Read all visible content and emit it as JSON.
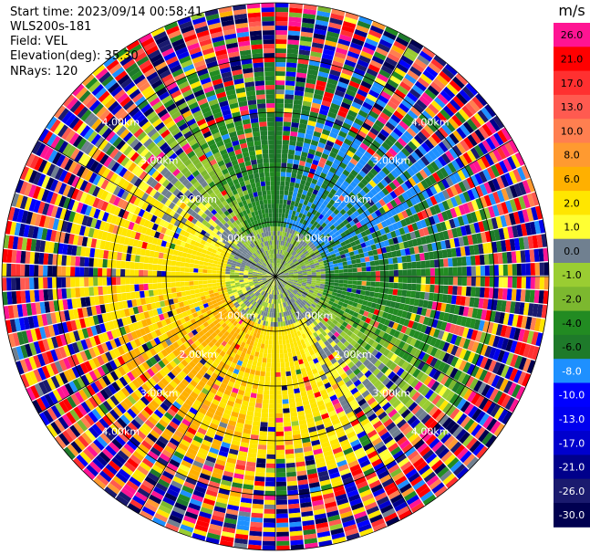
{
  "info": {
    "start_time": "Start time: 2023/09/14 00:58:41",
    "instrument": "WLS200s-181",
    "field": "Field: VEL",
    "elevation": "Elevation(deg): 35.30",
    "nrays": "NRays: 120"
  },
  "colorbar": {
    "unit": "m/s",
    "bins": [
      {
        "label": "26.0",
        "color": "#ff1493"
      },
      {
        "label": "21.0",
        "color": "#ff0000"
      },
      {
        "label": "17.0",
        "color": "#ff3030"
      },
      {
        "label": "13.0",
        "color": "#ff5a50"
      },
      {
        "label": "10.0",
        "color": "#ff7f50"
      },
      {
        "label": "8.0",
        "color": "#ff9a30"
      },
      {
        "label": "6.0",
        "color": "#ffb000"
      },
      {
        "label": "2.0",
        "color": "#ffe600"
      },
      {
        "label": "1.0",
        "color": "#ffff33"
      },
      {
        "label": "0.0",
        "color": "#708090"
      },
      {
        "label": "-1.0",
        "color": "#9acd32"
      },
      {
        "label": "-2.0",
        "color": "#7cb82f"
      },
      {
        "label": "-4.0",
        "color": "#228b22"
      },
      {
        "label": "-6.0",
        "color": "#1e7a2a"
      },
      {
        "label": "-8.0",
        "color": "#1e90ff"
      },
      {
        "label": "-10.0",
        "color": "#0000ff"
      },
      {
        "label": "-13.0",
        "color": "#0000ee"
      },
      {
        "label": "-17.0",
        "color": "#0000cd"
      },
      {
        "label": "-21.0",
        "color": "#00008b"
      },
      {
        "label": "-26.0",
        "color": "#1a1a6e"
      },
      {
        "label": "-30.0",
        "color": "#000050"
      }
    ]
  },
  "chart_data": {
    "type": "ppi",
    "field": "VEL",
    "units": "m/s",
    "nrays": 120,
    "elevation_deg": 35.3,
    "range_ring_labels_km": [
      1.0,
      2.0,
      3.0,
      4.0
    ],
    "range_ring_label_text": [
      "1.00km",
      "2.00km",
      "3.00km",
      "4.00km"
    ],
    "max_range_km": 5.0,
    "velocity_pattern": {
      "description_sectors": [
        {
          "azimuth_center_deg": 45,
          "dominant": "negative",
          "value_approx": -6.0
        },
        {
          "azimuth_center_deg": 225,
          "dominant": "positive",
          "value_approx": 6.0
        }
      ],
      "inner_range_km": 0.9,
      "inner_value_approx": 0.0
    }
  }
}
